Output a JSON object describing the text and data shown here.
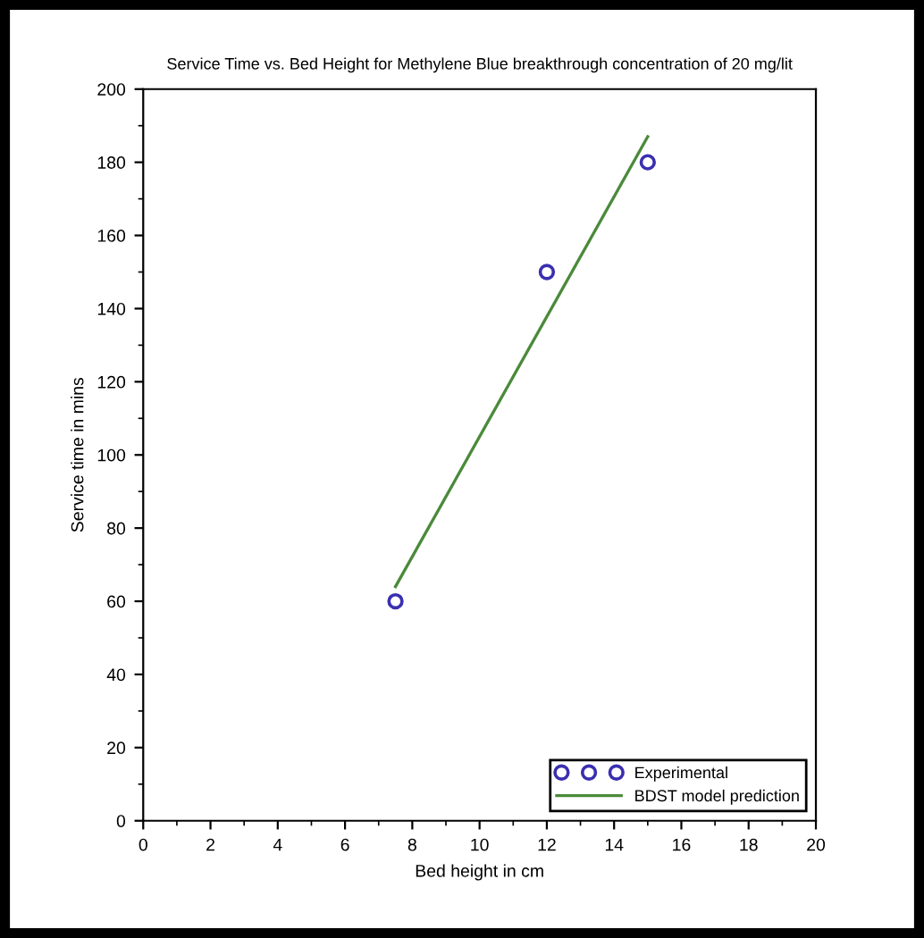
{
  "chart_data": {
    "type": "scatter",
    "title": "Service Time vs. Bed Height for Methylene Blue breakthrough concentration of 20 mg/lit",
    "xlabel": "Bed height in cm",
    "ylabel": "Service time in mins",
    "series": [
      {
        "name": "Experimental",
        "color": "#3a2fb0",
        "x": [
          7.5,
          12,
          15
        ],
        "values": [
          60,
          150,
          180
        ],
        "marker": "circle"
      },
      {
        "name": "BDST model prediction",
        "type": "line",
        "color": "#4a8a3a",
        "x": [
          7.5,
          15
        ],
        "values": [
          64,
          187
        ],
        "marker": "none",
        "line_style": "solid"
      }
    ],
    "xlim": [
      0,
      20
    ],
    "xticks": [
      0,
      2,
      4,
      6,
      8,
      10,
      12,
      14,
      16,
      18,
      20
    ],
    "ylim": [
      0,
      200
    ],
    "yticks": [
      0,
      20,
      40,
      60,
      80,
      100,
      120,
      140,
      160,
      180,
      200
    ],
    "grid": false,
    "legend": "bottom right"
  }
}
